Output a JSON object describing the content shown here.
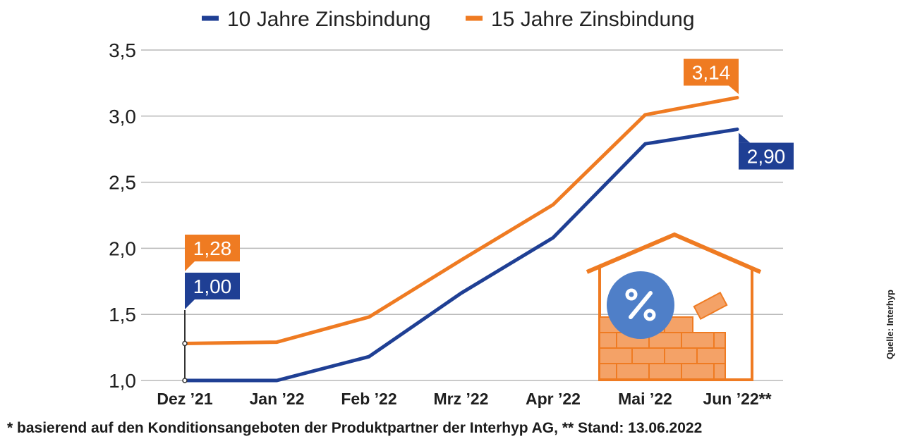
{
  "chart_data": {
    "type": "line",
    "categories": [
      "Dez ’21",
      "Jan ’22",
      "Feb ’22",
      "Mrz ’22",
      "Apr ’22",
      "Mai ’22",
      "Jun ’22**"
    ],
    "series": [
      {
        "name": "10 Jahre Zinsbindung",
        "color": "#1f3f94",
        "values": [
          1.0,
          1.0,
          1.18,
          1.66,
          2.08,
          2.79,
          2.9
        ]
      },
      {
        "name": "15 Jahre Zinsbindung",
        "color": "#ef7b22",
        "values": [
          1.28,
          1.29,
          1.48,
          1.91,
          2.33,
          3.01,
          3.14
        ]
      }
    ],
    "yticks": [
      "1,0",
      "1,5",
      "2,0",
      "2,5",
      "3,0",
      "3,5"
    ],
    "ylim": [
      1.0,
      3.5
    ],
    "grid": true,
    "legend_position": "top",
    "callouts": [
      {
        "label": "1,28",
        "series": 1,
        "index": 0
      },
      {
        "label": "1,00",
        "series": 0,
        "index": 0
      },
      {
        "label": "3,14",
        "series": 1,
        "index": 6
      },
      {
        "label": "2,90",
        "series": 0,
        "index": 6
      }
    ],
    "illustration": "house-with-bricks-and-percent-icon"
  },
  "footnote": "* basierend auf den Konditionsangeboten der Produktpartner der Interhyp AG, ** Stand: 13.06.2022",
  "source": "Quelle: Interhyp"
}
